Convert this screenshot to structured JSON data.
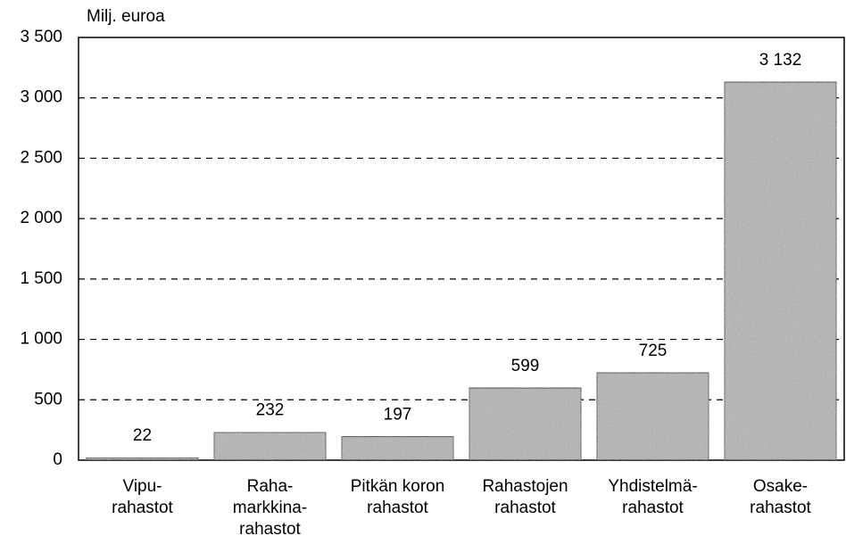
{
  "chart_data": {
    "type": "bar",
    "y_axis_label": "Milj. euroa",
    "categories": [
      "Vipu-\nrahastot",
      "Raha-\nmarkkina-\nrahastot",
      "Pitkän koron\nrahastot",
      "Rahastojen\nrahastot",
      "Yhdistelmä-\nrahastot",
      "Osake-\nrahastot"
    ],
    "values": [
      22,
      232,
      197,
      599,
      725,
      3132
    ],
    "value_labels": [
      "22",
      "232",
      "197",
      "599",
      "725",
      "3 132"
    ],
    "color": "#b4b4b4",
    "ylim": [
      0,
      3500
    ],
    "yticks": [
      0,
      500,
      {
        "value": 1000,
        "label": "1 000"
      },
      {
        "value": 1500,
        "label": "1 500"
      },
      {
        "value": 2000,
        "label": "2 000"
      },
      {
        "value": 2500,
        "label": "2 500"
      },
      {
        "value": 3000,
        "label": "3 000"
      },
      {
        "value": 3500,
        "label": "3 500"
      }
    ],
    "grid": true
  }
}
